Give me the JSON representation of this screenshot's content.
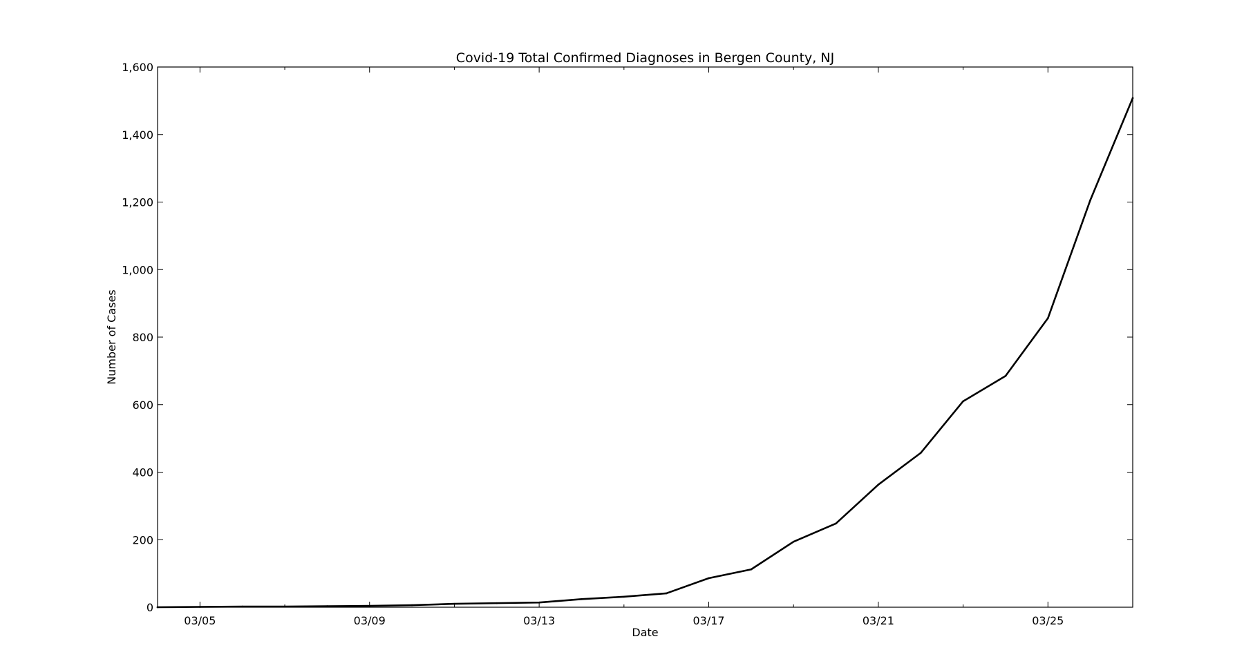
{
  "chart_data": {
    "type": "line",
    "title": "Covid-19 Total Confirmed Diagnoses in Bergen County, NJ",
    "xlabel": "Date",
    "ylabel": "Number of Cases",
    "x_axis": "date",
    "xlim": [
      "2020-03-04",
      "2020-03-27"
    ],
    "ylim": [
      0,
      1600
    ],
    "grid": false,
    "legend": "none",
    "x_ticks": [
      {
        "date": "2020-03-05",
        "label": "03/05"
      },
      {
        "date": "2020-03-09",
        "label": "03/09"
      },
      {
        "date": "2020-03-13",
        "label": "03/13"
      },
      {
        "date": "2020-03-17",
        "label": "03/17"
      },
      {
        "date": "2020-03-21",
        "label": "03/21"
      },
      {
        "date": "2020-03-25",
        "label": "03/25"
      }
    ],
    "x_minor_ticks": [
      "2020-03-07",
      "2020-03-11",
      "2020-03-15",
      "2020-03-19",
      "2020-03-23",
      "2020-03-27"
    ],
    "y_ticks": [
      {
        "value": 0,
        "label": "0"
      },
      {
        "value": 200,
        "label": "200"
      },
      {
        "value": 400,
        "label": "400"
      },
      {
        "value": 600,
        "label": "600"
      },
      {
        "value": 800,
        "label": "800"
      },
      {
        "value": 1000,
        "label": "1,000"
      },
      {
        "value": 1200,
        "label": "1,200"
      },
      {
        "value": 1400,
        "label": "1,400"
      },
      {
        "value": 1600,
        "label": "1,600"
      }
    ],
    "series": [
      {
        "color": "#000000",
        "points": [
          {
            "date": "2020-03-04",
            "value": 0
          },
          {
            "date": "2020-03-05",
            "value": 1
          },
          {
            "date": "2020-03-06",
            "value": 2
          },
          {
            "date": "2020-03-07",
            "value": 2
          },
          {
            "date": "2020-03-08",
            "value": 3
          },
          {
            "date": "2020-03-09",
            "value": 4
          },
          {
            "date": "2020-03-10",
            "value": 6
          },
          {
            "date": "2020-03-11",
            "value": 10
          },
          {
            "date": "2020-03-12",
            "value": 12
          },
          {
            "date": "2020-03-13",
            "value": 14
          },
          {
            "date": "2020-03-14",
            "value": 24
          },
          {
            "date": "2020-03-15",
            "value": 31
          },
          {
            "date": "2020-03-16",
            "value": 41
          },
          {
            "date": "2020-03-17",
            "value": 86
          },
          {
            "date": "2020-03-18",
            "value": 112
          },
          {
            "date": "2020-03-19",
            "value": 194
          },
          {
            "date": "2020-03-20",
            "value": 248
          },
          {
            "date": "2020-03-21",
            "value": 363
          },
          {
            "date": "2020-03-22",
            "value": 457
          },
          {
            "date": "2020-03-23",
            "value": 610
          },
          {
            "date": "2020-03-24",
            "value": 685
          },
          {
            "date": "2020-03-25",
            "value": 856
          },
          {
            "date": "2020-03-26",
            "value": 1206
          },
          {
            "date": "2020-03-27",
            "value": 1508
          }
        ]
      }
    ]
  }
}
